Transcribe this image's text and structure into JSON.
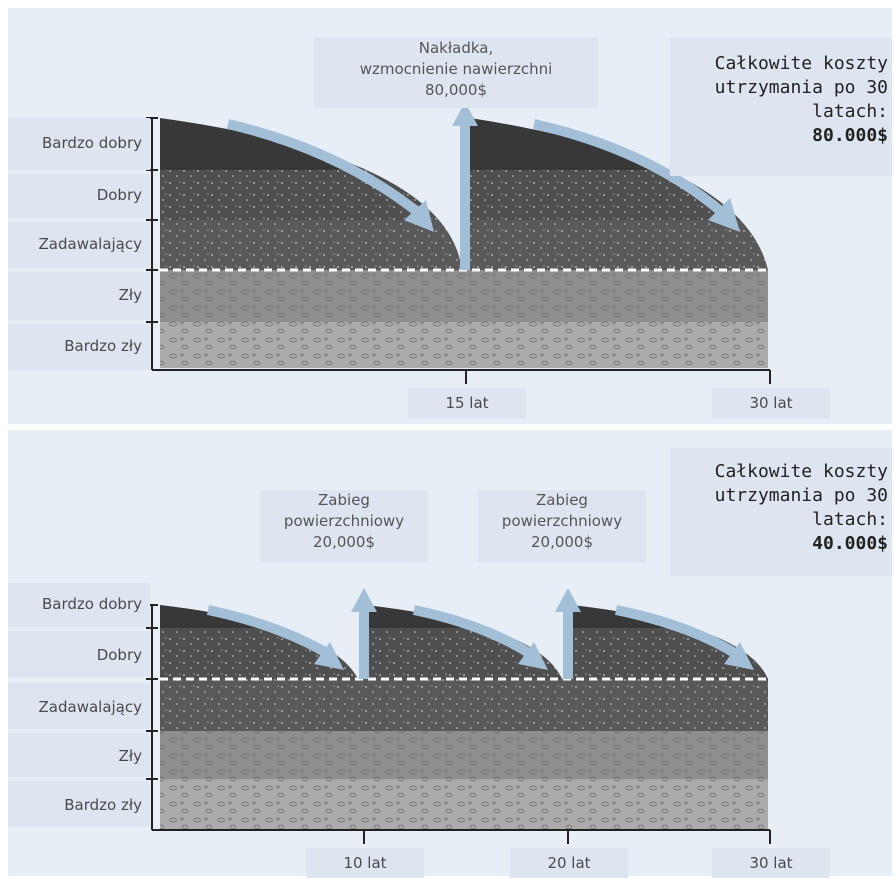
{
  "diagram_1": {
    "condition_levels": [
      "Bardzo dobry",
      "Dobry",
      "Zadawalający",
      "Zły",
      "Bardzo zły"
    ],
    "time_labels": [
      "15 lat",
      "30 lat"
    ],
    "intervention": {
      "line1": "Nakładka,",
      "line2": "wzmocnienie nawierzchni",
      "line3": "80,000$"
    },
    "total": {
      "line1": "Całkowite koszty",
      "line2": "utrzymania po 30",
      "line3": "latach:",
      "amount": "80.000$"
    }
  },
  "diagram_2": {
    "condition_levels": [
      "Bardzo dobry",
      "Dobry",
      "Zadawalający",
      "Zły",
      "Bardzo zły"
    ],
    "time_labels": [
      "10 lat",
      "20 lat",
      "30 lat"
    ],
    "interventions": [
      {
        "line1": "Zabieg",
        "line2": "powierzchniowy",
        "line3": "20,000$"
      },
      {
        "line1": "Zabieg",
        "line2": "powierzchniowy",
        "line3": "20,000$"
      }
    ],
    "total": {
      "line1": "Całkowite koszty",
      "line2": "utrzymania po 30",
      "line3": "latach:",
      "amount": "40.000$"
    }
  },
  "colors": {
    "panel_bg": "#e8eef5",
    "label_bg": "#dde6f0",
    "very_good": "#3a3a3a",
    "good": "#535353",
    "poor": "#8e8e8e",
    "very_poor": "#aaaaaa",
    "arrow": "#a3bfd8",
    "threshold": "#ffffff"
  }
}
